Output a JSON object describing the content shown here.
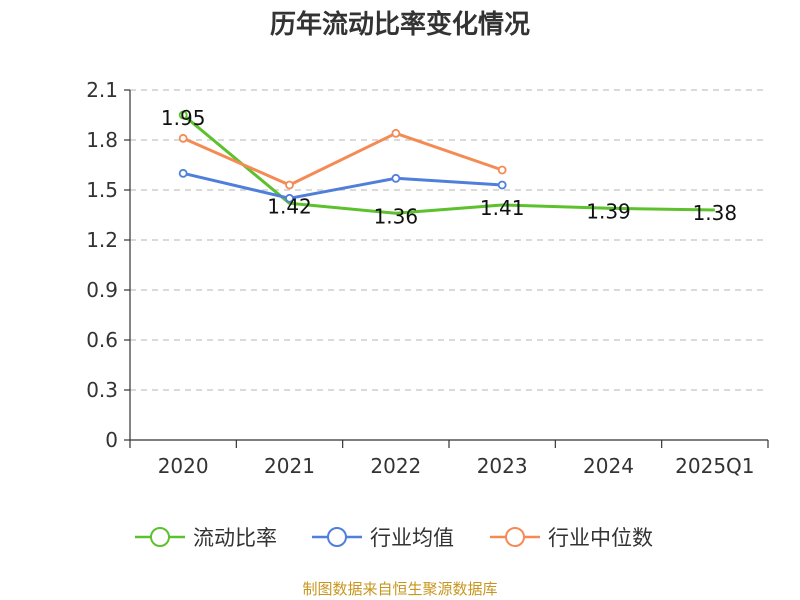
{
  "chart_data": {
    "type": "line",
    "title": "历年流动比率变化情况",
    "categories": [
      "2020",
      "2021",
      "2022",
      "2023",
      "2024",
      "2025Q1"
    ],
    "y_ticks": [
      "0",
      "0.3",
      "0.6",
      "0.9",
      "1.2",
      "1.5",
      "1.8",
      "2.1"
    ],
    "ylim": [
      0,
      2.1
    ],
    "grid": true,
    "legend_position": "bottom",
    "series": [
      {
        "name": "流动比率",
        "color": "#5cc12d",
        "values": [
          1.95,
          1.42,
          1.36,
          1.41,
          1.39,
          1.38
        ],
        "data_labels": [
          "1.95",
          "1.42",
          "1.36",
          "1.41",
          "1.39",
          "1.38"
        ],
        "markers": "first-only"
      },
      {
        "name": "行业均值",
        "color": "#4f7fdb",
        "values": [
          1.6,
          1.45,
          1.57,
          1.53,
          null,
          null
        ],
        "markers": "all"
      },
      {
        "name": "行业中位数",
        "color": "#f48b55",
        "values": [
          1.81,
          1.53,
          1.84,
          1.62,
          null,
          null
        ],
        "markers": "all"
      }
    ],
    "source_note": "制图数据来自恒生聚源数据库"
  }
}
